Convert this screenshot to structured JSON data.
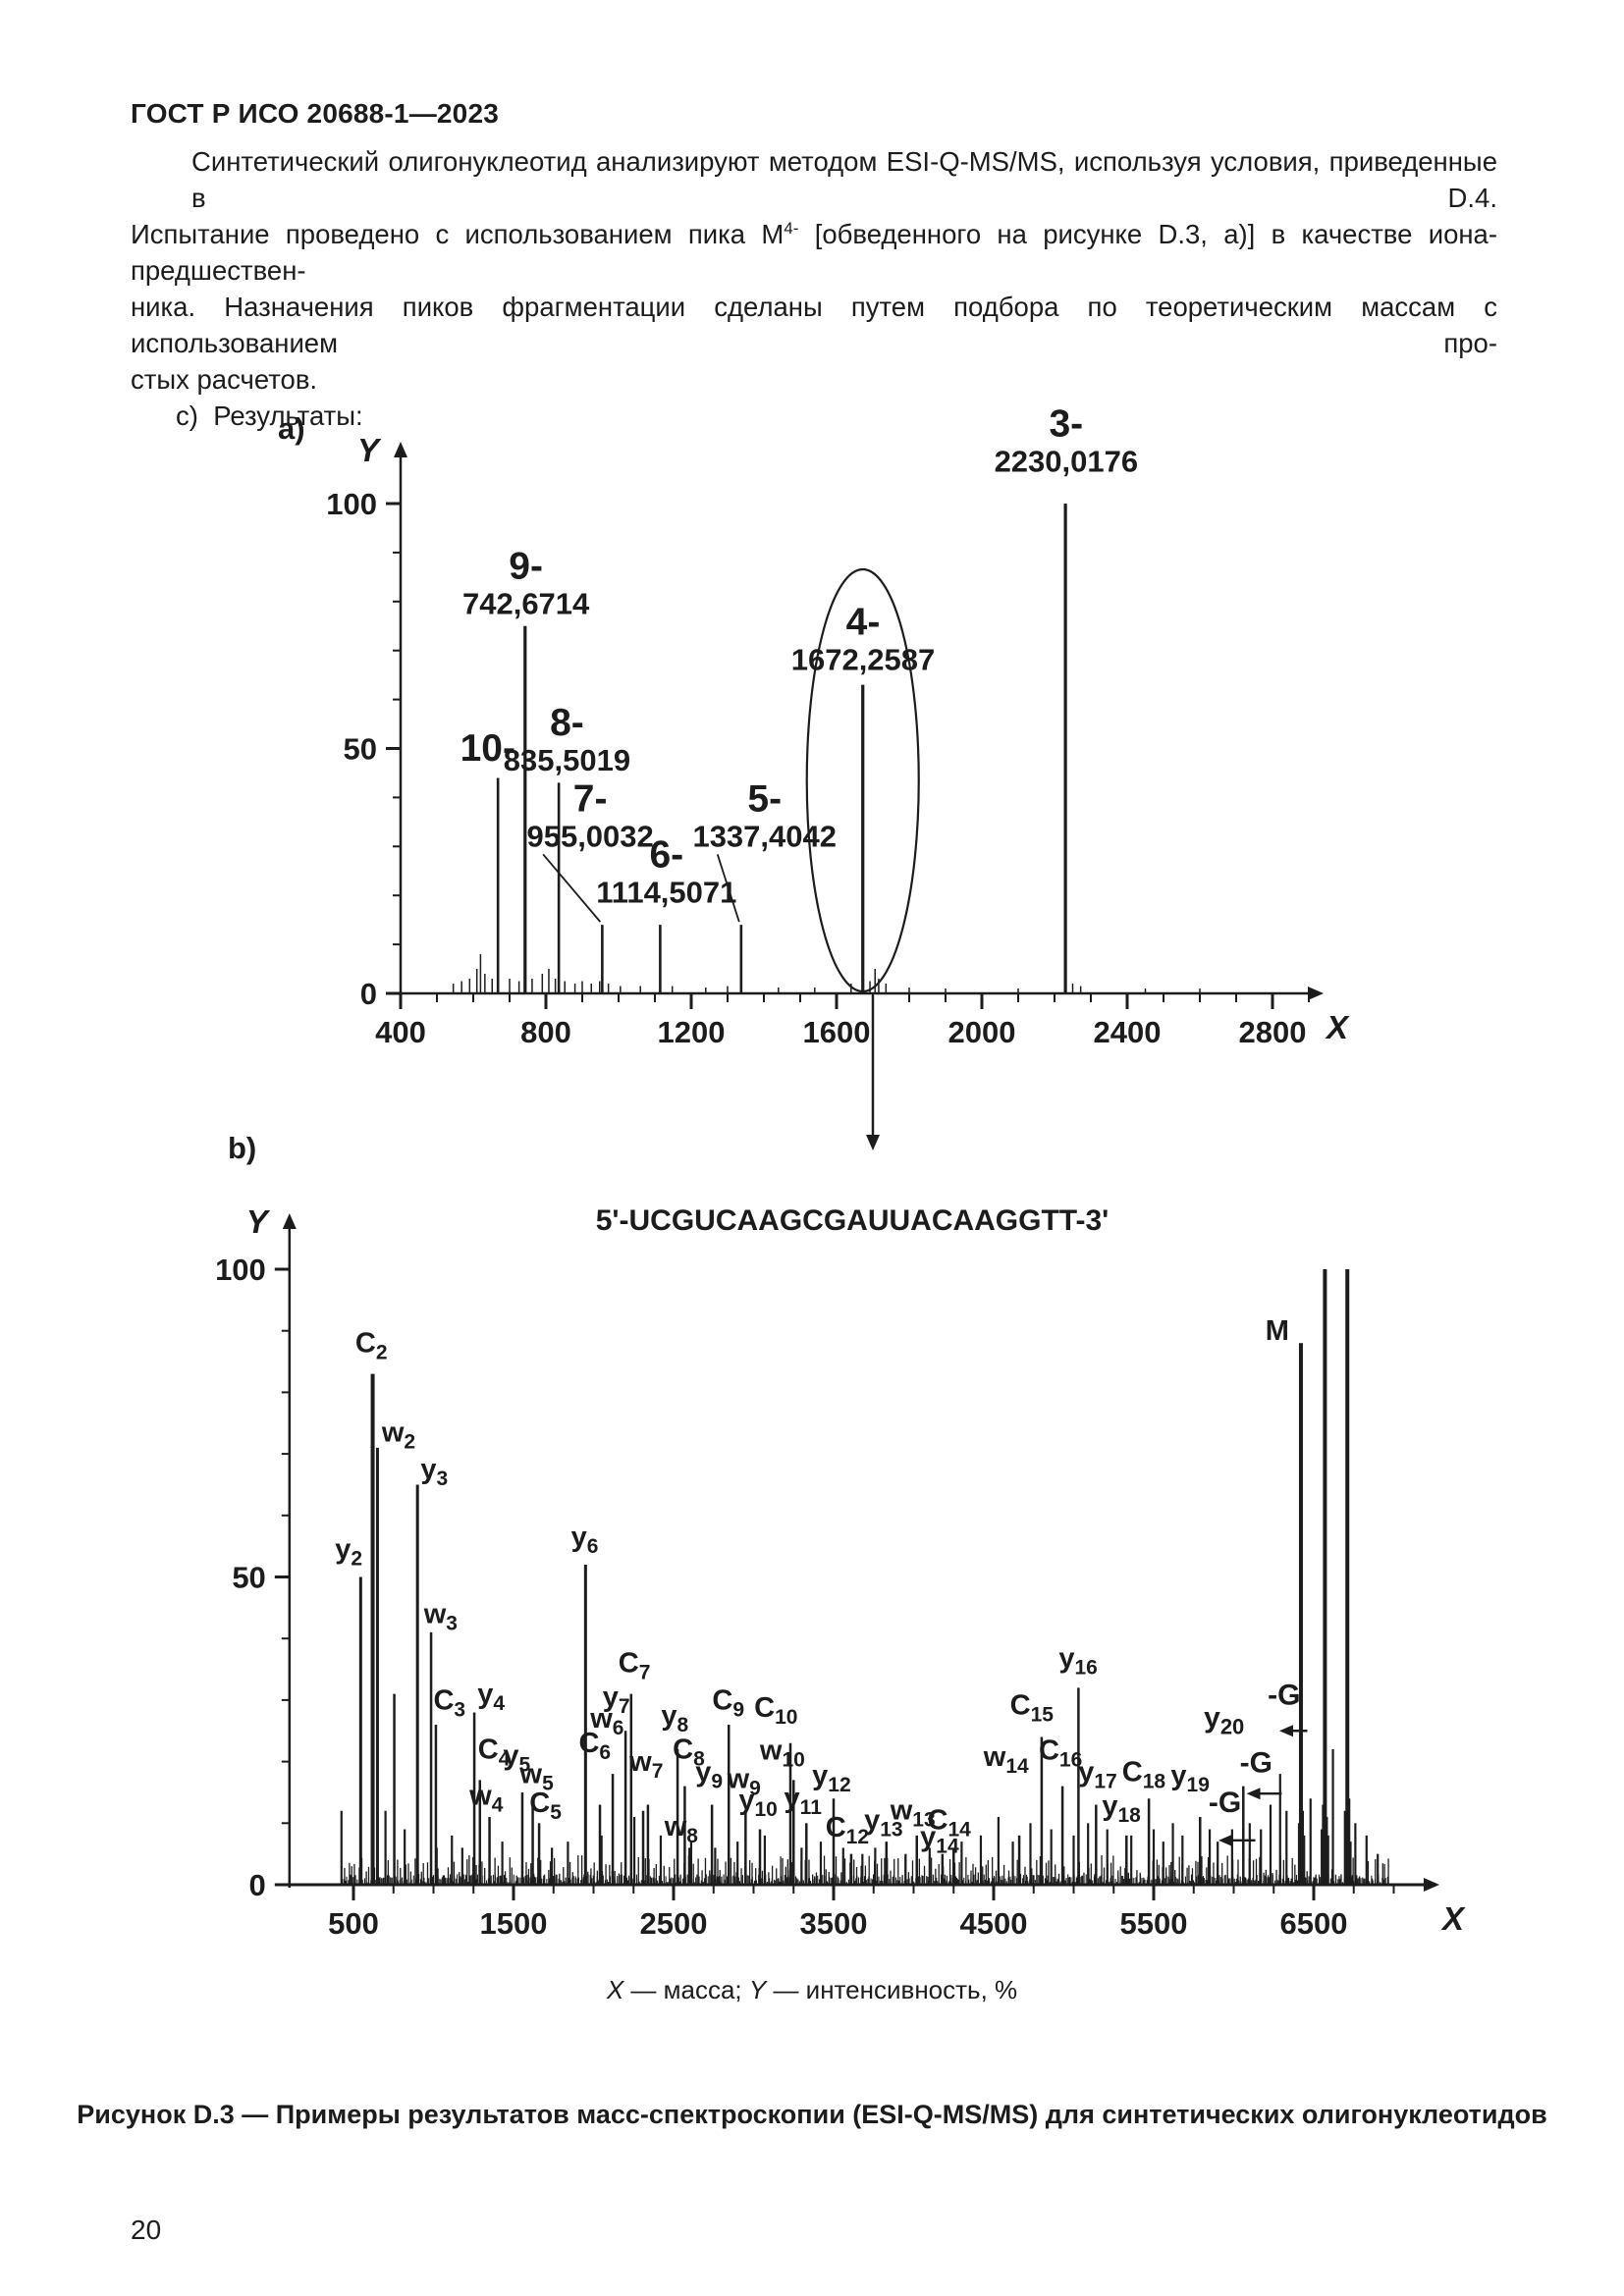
{
  "page": {
    "header": "ГОСТ Р ИСО 20688-1—2023",
    "page_number": "20",
    "paragraph": {
      "line1": "Синтетический олигонуклеотид анализируют методом ESI-Q-MS/MS, используя условия, приведенные в D.4.",
      "line2_pre": "Испытание проведено с использованием пика M",
      "line2_sup": "4-",
      "line2_post": " [обведенного на рисунке D.3, a)] в качестве иона-предшествен-",
      "line3": "ника. Назначения пиков фрагментации сделаны путем подбора по теоретическим массам с использованием про-",
      "line4": "стых расчетов.",
      "item_c": "c)  Результаты:"
    },
    "axis_note": {
      "x_var": "X",
      "x_desc": " — масса; ",
      "y_var": "Y",
      "y_desc": " — интенсивность, %"
    },
    "figure_caption": "Рисунок D.3 — Примеры результатов масс-спектроскопии (ESI-Q-MS/MS) для синтетических олигонуклеотидов"
  },
  "colors": {
    "ink": "#1c1c1c",
    "paper": "#ffffff"
  },
  "chart_data": [
    {
      "id": "a",
      "type": "bar",
      "variant": "mass-spectrum",
      "panel_label": "a)",
      "xlabel": "X",
      "ylabel": "Y",
      "xlim": [
        400,
        2950
      ],
      "ylim": [
        0,
        110
      ],
      "x_ticks": [
        400,
        800,
        1200,
        1600,
        2000,
        2400,
        2800
      ],
      "x_minor_step": 100,
      "y_ticks": [
        0,
        50,
        100
      ],
      "y_minor_step": 10,
      "grid": false,
      "peaks": [
        {
          "charge": "10-",
          "mass": 668,
          "mass_text": null,
          "intensity": 44,
          "label_x": 640,
          "label_y": 47.5
        },
        {
          "charge": "9-",
          "mass": 742.6714,
          "mass_text": "742,6714",
          "intensity": 75,
          "label_x": 745,
          "label_y": 77.5
        },
        {
          "charge": "8-",
          "mass": 835.5019,
          "mass_text": "835,5019",
          "intensity": 43,
          "label_x": 858,
          "label_y": 45.5
        },
        {
          "charge": "7-",
          "mass": 955.0032,
          "mass_text": "955,0032",
          "intensity": 14,
          "label_x": 922,
          "label_y": 30,
          "leader": true
        },
        {
          "charge": "6-",
          "mass": 1114.5071,
          "mass_text": "1114,5071",
          "intensity": 14,
          "label_x": 1132,
          "label_y": 18.5
        },
        {
          "charge": "5-",
          "mass": 1337.4042,
          "mass_text": "1337,4042",
          "intensity": 14,
          "label_x": 1402,
          "label_y": 30,
          "leader": true
        },
        {
          "charge": "4-",
          "mass": 1672.2587,
          "mass_text": "1672,2587",
          "intensity": 63,
          "label_x": 1673,
          "label_y": 66,
          "circled": true
        },
        {
          "charge": "3-",
          "mass": 2230.0176,
          "mass_text": "2230,0176",
          "intensity": 100,
          "label_x": 2232,
          "label_y": 106.5
        }
      ],
      "noise": [
        [
          545,
          2
        ],
        [
          568,
          2.5
        ],
        [
          590,
          3
        ],
        [
          610,
          5
        ],
        [
          620,
          8
        ],
        [
          632,
          4
        ],
        [
          652,
          3
        ],
        [
          700,
          3
        ],
        [
          726,
          2.5
        ],
        [
          762,
          3
        ],
        [
          790,
          4
        ],
        [
          808,
          5
        ],
        [
          826,
          3
        ],
        [
          852,
          2.5
        ],
        [
          880,
          2
        ],
        [
          900,
          2.5
        ],
        [
          925,
          2
        ],
        [
          948,
          2.5
        ],
        [
          972,
          2
        ],
        [
          1005,
          1.5
        ],
        [
          1060,
          1.5
        ],
        [
          1148,
          1.5
        ],
        [
          1240,
          1.2
        ],
        [
          1300,
          1.5
        ],
        [
          1440,
          1.2
        ],
        [
          1540,
          1.2
        ],
        [
          1640,
          2
        ],
        [
          1692,
          2.5
        ],
        [
          1706,
          5
        ],
        [
          1716,
          3
        ],
        [
          1736,
          2
        ],
        [
          1800,
          1.2
        ],
        [
          1900,
          1
        ],
        [
          2100,
          1
        ],
        [
          2250,
          2
        ],
        [
          2272,
          1.5
        ],
        [
          2450,
          1
        ],
        [
          2600,
          1
        ]
      ],
      "precursor_arrow_mass": 1700
    },
    {
      "id": "b",
      "type": "bar",
      "variant": "mass-spectrum",
      "panel_label": "b)",
      "title": "5'-UCGUCAAGCGAUUACAAGGTT-3'",
      "xlabel": "X",
      "ylabel": "Y",
      "xlim": [
        100,
        7250
      ],
      "ylim": [
        0,
        108
      ],
      "x_ticks": [
        500,
        1500,
        2500,
        3500,
        4500,
        5500,
        6500
      ],
      "x_minor_step": 250,
      "y_ticks": [
        0,
        50,
        100
      ],
      "y_minor_step": 10,
      "grid": false,
      "peaks": [
        {
          "base": "y",
          "sub": "2",
          "mass": 545,
          "intensity": 50,
          "lx": 470,
          "ly": 53
        },
        {
          "base": "C",
          "sub": "2",
          "mass": 620,
          "intensity": 83,
          "lx": 612,
          "ly": 86.5
        },
        {
          "base": "w",
          "sub": "2",
          "mass": 650,
          "intensity": 71,
          "lx": 782,
          "ly": 72
        },
        {
          "base": null,
          "sub": null,
          "mass": 755,
          "intensity": 31
        },
        {
          "base": "y",
          "sub": "3",
          "mass": 900,
          "intensity": 65,
          "lx": 1005,
          "ly": 66
        },
        {
          "base": "w",
          "sub": "3",
          "mass": 985,
          "intensity": 41,
          "lx": 1045,
          "ly": 42.5
        },
        {
          "base": "C",
          "sub": "3",
          "mass": 1015,
          "intensity": 26,
          "lx": 1100,
          "ly": 28.5
        },
        {
          "base": "y",
          "sub": "4",
          "mass": 1255,
          "intensity": 28,
          "lx": 1360,
          "ly": 29.5
        },
        {
          "base": "C",
          "sub": "4",
          "mass": 1290,
          "intensity": 17,
          "lx": 1378,
          "ly": 20.5
        },
        {
          "base": "w",
          "sub": "4",
          "mass": 1350,
          "intensity": 11,
          "lx": 1330,
          "ly": 13
        },
        {
          "base": "y",
          "sub": "5",
          "mass": 1555,
          "intensity": 15,
          "lx": 1520,
          "ly": 19.5
        },
        {
          "base": "w",
          "sub": "5",
          "mass": 1620,
          "intensity": 13,
          "lx": 1645,
          "ly": 16.5
        },
        {
          "base": "C",
          "sub": "5",
          "mass": 1660,
          "intensity": 10,
          "lx": 1700,
          "ly": 11.8
        },
        {
          "base": "y",
          "sub": "6",
          "mass": 1950,
          "intensity": 52,
          "lx": 1945,
          "ly": 55
        },
        {
          "base": "C",
          "sub": "6",
          "mass": 2040,
          "intensity": 13,
          "lx": 2008,
          "ly": 21.5
        },
        {
          "base": "w",
          "sub": "6",
          "mass": 2120,
          "intensity": 18,
          "lx": 2085,
          "ly": 25.5
        },
        {
          "base": "y",
          "sub": "7",
          "mass": 2200,
          "intensity": 25,
          "lx": 2142,
          "ly": 29
        },
        {
          "base": "C",
          "sub": "7",
          "mass": 2235,
          "intensity": 31,
          "lx": 2255,
          "ly": 34.5
        },
        {
          "base": "w",
          "sub": "7",
          "mass": 2310,
          "intensity": 12,
          "lx": 2330,
          "ly": 18.5
        },
        {
          "base": null,
          "sub": null,
          "mass": 2340,
          "intensity": 13
        },
        {
          "base": "y",
          "sub": "8",
          "mass": 2525,
          "intensity": 22,
          "lx": 2508,
          "ly": 26
        },
        {
          "base": "C",
          "sub": "8",
          "mass": 2570,
          "intensity": 16,
          "lx": 2595,
          "ly": 20.5
        },
        {
          "base": "w",
          "sub": "8",
          "mass": 2600,
          "intensity": 6,
          "lx": 2548,
          "ly": 8
        },
        {
          "base": "y",
          "sub": "9",
          "mass": 2740,
          "intensity": 13,
          "lx": 2722,
          "ly": 16.8
        },
        {
          "base": "C",
          "sub": "9",
          "mass": 2845,
          "intensity": 26,
          "lx": 2842,
          "ly": 28.5
        },
        {
          "base": "w",
          "sub": "9",
          "mass": 2950,
          "intensity": 12,
          "lx": 2940,
          "ly": 15.7
        },
        {
          "base": "y",
          "sub": "10",
          "mass": 3040,
          "intensity": 9,
          "lx": 3028,
          "ly": 12.3
        },
        {
          "base": "C",
          "sub": "10",
          "mass": 3230,
          "intensity": 23,
          "lx": 3140,
          "ly": 27.3
        },
        {
          "base": "w",
          "sub": "10",
          "mass": 3250,
          "intensity": 17,
          "lx": 3180,
          "ly": 20.3
        },
        {
          "base": "y",
          "sub": "11",
          "mass": 3330,
          "intensity": 10,
          "lx": 3308,
          "ly": 12.6
        },
        {
          "base": "y",
          "sub": "12",
          "mass": 3500,
          "intensity": 14,
          "lx": 3487,
          "ly": 16.3
        },
        {
          "base": "C",
          "sub": "12",
          "mass": 3610,
          "intensity": 5,
          "lx": 3585,
          "ly": 7.8
        },
        {
          "base": "y",
          "sub": "13",
          "mass": 3830,
          "intensity": 7,
          "lx": 3812,
          "ly": 9
        },
        {
          "base": "w",
          "sub": "13",
          "mass": 4020,
          "intensity": 8,
          "lx": 3995,
          "ly": 10.6
        },
        {
          "base": "y",
          "sub": "14",
          "mass": 4180,
          "intensity": 5,
          "lx": 4162,
          "ly": 6.3
        },
        {
          "base": "C",
          "sub": "14",
          "mass": 4250,
          "intensity": 6,
          "lx": 4222,
          "ly": 9
        },
        {
          "base": "w",
          "sub": "14",
          "mass": 4660,
          "intensity": 8,
          "lx": 4578,
          "ly": 19.3
        },
        {
          "base": "C",
          "sub": "15",
          "mass": 4800,
          "intensity": 24,
          "lx": 4738,
          "ly": 27.7
        },
        {
          "base": "C",
          "sub": "16",
          "mass": 4930,
          "intensity": 16,
          "lx": 4918,
          "ly": 20.3
        },
        {
          "base": "y",
          "sub": "16",
          "mass": 5030,
          "intensity": 32,
          "lx": 5028,
          "ly": 35.3
        },
        {
          "base": "y",
          "sub": "17",
          "mass": 5140,
          "intensity": 13,
          "lx": 5150,
          "ly": 16.8
        },
        {
          "base": "y",
          "sub": "18",
          "mass": 5330,
          "intensity": 8,
          "lx": 5298,
          "ly": 11.3
        },
        {
          "base": "C",
          "sub": "18",
          "mass": 5470,
          "intensity": 14,
          "lx": 5438,
          "ly": 16.8
        },
        {
          "base": "y",
          "sub": "19",
          "mass": 5790,
          "intensity": 11,
          "lx": 5728,
          "ly": 16.3
        },
        {
          "base": null,
          "sub": null,
          "mass": 6060,
          "intensity": 16
        },
        {
          "base": "M",
          "sub": null,
          "mass": 6420,
          "intensity": 88,
          "lx": 6272,
          "ly": 88.5
        },
        {
          "base": null,
          "sub": null,
          "mass": 6570,
          "intensity": 100
        },
        {
          "base": null,
          "sub": null,
          "mass": 6710,
          "intensity": 100
        }
      ],
      "extra_peaks": [
        [
          425,
          12
        ],
        [
          700,
          12
        ],
        [
          820,
          9
        ],
        [
          1020,
          6
        ],
        [
          1115,
          8
        ],
        [
          1180,
          6
        ],
        [
          1430,
          7
        ],
        [
          1740,
          6
        ],
        [
          1840,
          7
        ],
        [
          2050,
          8
        ],
        [
          2255,
          11
        ],
        [
          2420,
          8
        ],
        [
          2610,
          7
        ],
        [
          2760,
          6
        ],
        [
          2900,
          7
        ],
        [
          3070,
          8
        ],
        [
          3300,
          6
        ],
        [
          3420,
          7
        ],
        [
          3560,
          6
        ],
        [
          3680,
          5
        ],
        [
          3760,
          6
        ],
        [
          3950,
          5
        ],
        [
          4100,
          6
        ],
        [
          4300,
          7
        ],
        [
          4420,
          8
        ],
        [
          4530,
          11
        ],
        [
          4620,
          7
        ],
        [
          4730,
          10
        ],
        [
          4860,
          9
        ],
        [
          5000,
          8
        ],
        [
          5090,
          10
        ],
        [
          5210,
          9
        ],
        [
          5360,
          8
        ],
        [
          5500,
          9
        ],
        [
          5560,
          7
        ],
        [
          5620,
          10
        ],
        [
          5680,
          8
        ],
        [
          5850,
          9
        ],
        [
          5900,
          7
        ],
        [
          5990,
          9
        ],
        [
          6100,
          10
        ],
        [
          6170,
          9
        ],
        [
          6230,
          13
        ],
        [
          6290,
          18
        ],
        [
          6330,
          12
        ],
        [
          6408,
          10
        ],
        [
          6432,
          12
        ],
        [
          6440,
          8
        ],
        [
          6480,
          14
        ],
        [
          6550,
          9
        ],
        [
          6558,
          13
        ],
        [
          6582,
          11
        ],
        [
          6590,
          8
        ],
        [
          6620,
          22
        ],
        [
          6695,
          12
        ],
        [
          6702,
          9
        ],
        [
          6722,
          14
        ],
        [
          6730,
          7
        ],
        [
          6760,
          10
        ],
        [
          6830,
          8
        ],
        [
          6900,
          5
        ]
      ],
      "noise_spec": {
        "seed": 42,
        "from": 420,
        "to": 6950
      },
      "loss_annotations": [
        {
          "peak_text": "y",
          "peak_sub": "20",
          "tx": 5940,
          "ty": 25.6,
          "g_label": "-G",
          "g_x": 6315,
          "g_y": 29.3,
          "arrow_y": 25,
          "arrow_from": 6460,
          "arrow_to": 6285
        },
        {
          "peak_text": null,
          "peak_sub": null,
          "g_label": "-G",
          "g_x": 6140,
          "g_y": 18.3,
          "arrow_y": 14.8,
          "arrow_from": 6300,
          "arrow_to": 6080
        },
        {
          "peak_text": null,
          "peak_sub": null,
          "g_label": "-G",
          "g_x": 5945,
          "g_y": 11.8,
          "arrow_y": 7.2,
          "arrow_from": 6135,
          "arrow_to": 5905
        }
      ]
    }
  ]
}
